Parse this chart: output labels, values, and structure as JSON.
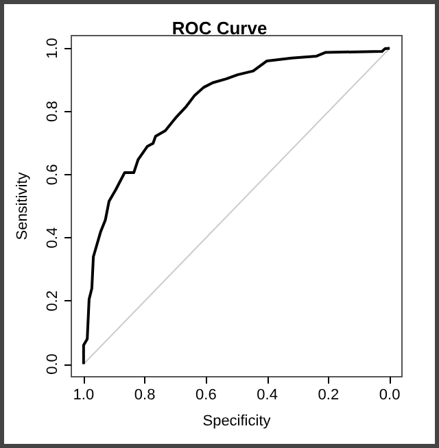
{
  "chart_data": {
    "type": "line",
    "title": "ROC Curve",
    "xlabel": "Specificity",
    "ylabel": "Sensitivity",
    "xlim": [
      1.04,
      -0.04
    ],
    "ylim": [
      -0.04,
      1.04
    ],
    "xticks": [
      {
        "value": 1,
        "label": "1.0"
      },
      0.8,
      0.6,
      0.4,
      0.2,
      {
        "value": 0,
        "label": "0.0"
      }
    ],
    "yticks": [
      {
        "value": 0,
        "label": "0.0"
      },
      0.2,
      0.4,
      0.6,
      0.8,
      {
        "value": 1,
        "label": "1.0"
      }
    ],
    "grid": false,
    "marker": "none",
    "line_style": "solid",
    "series": [
      {
        "color": "#000000",
        "x": [
          1.0,
          1.0,
          0.988,
          0.982,
          0.973,
          0.968,
          0.959,
          0.944,
          0.929,
          0.917,
          0.895,
          0.866,
          0.836,
          0.822,
          0.792,
          0.773,
          0.765,
          0.733,
          0.699,
          0.667,
          0.637,
          0.608,
          0.578,
          0.534,
          0.497,
          0.446,
          0.401,
          0.32,
          0.239,
          0.209,
          0.025,
          0.015,
          0.0
        ],
        "values": [
          0.0,
          0.06,
          0.08,
          0.205,
          0.24,
          0.34,
          0.37,
          0.42,
          0.456,
          0.515,
          0.552,
          0.606,
          0.606,
          0.647,
          0.689,
          0.699,
          0.721,
          0.739,
          0.78,
          0.813,
          0.851,
          0.876,
          0.891,
          0.903,
          0.916,
          0.928,
          0.96,
          0.969,
          0.975,
          0.987,
          0.99,
          0.999,
          1.0
        ]
      },
      {
        "color": "#cccccc",
        "x": [
          1.0,
          0.0
        ],
        "values": [
          0.0,
          1.0
        ]
      }
    ]
  }
}
